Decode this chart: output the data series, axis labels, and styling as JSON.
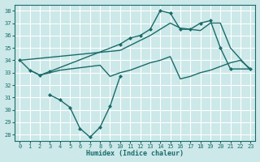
{
  "xlabel": "Humidex (Indice chaleur)",
  "ylabel": "",
  "xlim": [
    -0.5,
    23.5
  ],
  "ylim": [
    27.5,
    38.5
  ],
  "yticks": [
    28,
    29,
    30,
    31,
    32,
    33,
    34,
    35,
    36,
    37,
    38
  ],
  "xticks": [
    0,
    1,
    2,
    3,
    4,
    5,
    6,
    7,
    8,
    9,
    10,
    11,
    12,
    13,
    14,
    15,
    16,
    17,
    18,
    19,
    20,
    21,
    22,
    23
  ],
  "bg_color": "#cce8e8",
  "line_color": "#1a6b6b",
  "grid_color": "#ffffff",
  "lines": [
    {
      "x": [
        0,
        1,
        2,
        3,
        10,
        11,
        12,
        13,
        14,
        15,
        16,
        17,
        18,
        19,
        20,
        21,
        23
      ],
      "y": [
        34.0,
        33.2,
        32.8,
        33.1,
        35.3,
        35.8,
        36.0,
        36.5,
        38.0,
        37.8,
        36.5,
        36.5,
        37.0,
        37.2,
        35.0,
        33.3,
        33.3
      ],
      "marker": "D",
      "markersize": 2.0,
      "linewidth": 1.0,
      "drawstyle": "default"
    },
    {
      "x": [
        3,
        4,
        5,
        6,
        7,
        8,
        9,
        10
      ],
      "y": [
        31.2,
        30.8,
        30.2,
        28.5,
        27.8,
        28.6,
        30.3,
        32.7
      ],
      "marker": "D",
      "markersize": 2.0,
      "linewidth": 1.0,
      "drawstyle": "default"
    },
    {
      "x": [
        0,
        10,
        11,
        12,
        13,
        14,
        15,
        16,
        17,
        18,
        19,
        20,
        21,
        23
      ],
      "y": [
        34.0,
        34.8,
        35.2,
        35.6,
        36.0,
        36.5,
        37.0,
        36.6,
        36.5,
        36.4,
        37.0,
        37.0,
        35.0,
        33.2
      ],
      "marker": null,
      "markersize": 0,
      "linewidth": 1.0,
      "drawstyle": "default"
    },
    {
      "x": [
        1,
        2,
        3,
        4,
        5,
        6,
        7,
        8,
        9,
        10,
        11,
        12,
        13,
        14,
        15,
        16,
        17,
        18,
        19,
        20,
        21,
        22,
        23
      ],
      "y": [
        33.2,
        32.8,
        33.0,
        33.2,
        33.3,
        33.4,
        33.5,
        33.6,
        32.7,
        33.0,
        33.2,
        33.5,
        33.8,
        34.0,
        34.3,
        32.5,
        32.7,
        33.0,
        33.2,
        33.5,
        33.8,
        34.0,
        33.3
      ],
      "marker": null,
      "markersize": 0,
      "linewidth": 1.0,
      "drawstyle": "default"
    }
  ]
}
